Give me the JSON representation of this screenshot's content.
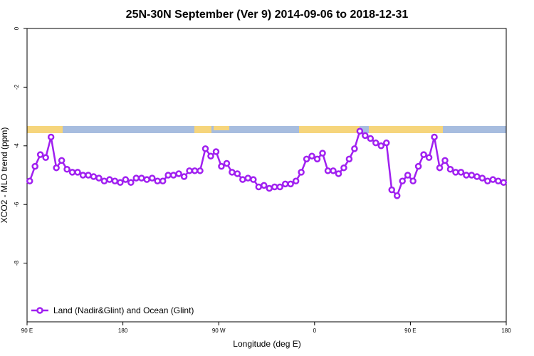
{
  "chart_data": {
    "type": "line",
    "title": "25N-30N September (Ver 9)   2014-09-06 to 2018-12-31",
    "x_label": "Longitude (deg E)",
    "y_label": "XCO2 - MLO trend (ppm)",
    "xlim": [
      90,
      540
    ],
    "ylim": [
      -10,
      0
    ],
    "xticks": [
      {
        "value": 90,
        "label": "90 E"
      },
      180,
      {
        "value": 270,
        "label": "90 W"
      },
      {
        "value": 360,
        "label": "0"
      },
      {
        "value": 450,
        "label": "90 E"
      },
      {
        "value": 540,
        "label": "180"
      }
    ],
    "yticks": [
      0,
      -2,
      -4,
      -6,
      -8
    ],
    "legend_position": "bottom-left",
    "x": [
      92.5,
      97.5,
      102.5,
      107.5,
      112.5,
      117.5,
      122.5,
      127.5,
      132.5,
      137.5,
      142.5,
      147.5,
      152.5,
      157.5,
      162.5,
      167.5,
      172.5,
      177.5,
      182.5,
      187.5,
      192.5,
      197.5,
      202.5,
      207.5,
      212.5,
      217.5,
      222.5,
      227.5,
      232.5,
      237.5,
      242.5,
      247.5,
      252.5,
      257.5,
      262.5,
      267.5,
      272.5,
      277.5,
      282.5,
      287.5,
      292.5,
      297.5,
      302.5,
      307.5,
      312.5,
      317.5,
      322.5,
      327.5,
      332.5,
      337.5,
      342.5,
      347.5,
      352.5,
      357.5,
      362.5,
      367.5,
      372.5,
      377.5,
      382.5,
      387.5,
      392.5,
      397.5,
      402.5,
      407.5,
      412.5,
      417.5,
      422.5,
      427.5,
      432.5,
      437.5,
      442.5,
      447.5,
      452.5,
      457.5,
      462.5,
      467.5,
      472.5,
      477.5,
      482.5,
      487.5,
      492.5,
      497.5,
      502.5,
      507.5,
      512.5,
      517.5,
      522.5,
      527.5,
      532.5,
      537.5
    ],
    "series": [
      {
        "name": "Land (Nadir&Glint) and Ocean (Glint)",
        "color": "#a020f0",
        "values": [
          -5.2,
          -4.7,
          -4.3,
          -4.4,
          -3.7,
          -4.75,
          -4.5,
          -4.8,
          -4.9,
          -4.9,
          -5.0,
          -5.0,
          -5.05,
          -5.1,
          -5.2,
          -5.15,
          -5.2,
          -5.25,
          -5.15,
          -5.25,
          -5.1,
          -5.1,
          -5.15,
          -5.1,
          -5.2,
          -5.2,
          -5.0,
          -5.0,
          -4.95,
          -5.05,
          -4.85,
          -4.85,
          -4.85,
          -4.1,
          -4.35,
          -4.2,
          -4.7,
          -4.6,
          -4.9,
          -4.95,
          -5.15,
          -5.1,
          -5.15,
          -5.4,
          -5.35,
          -5.45,
          -5.4,
          -5.4,
          -5.3,
          -5.3,
          -5.2,
          -4.9,
          -4.45,
          -4.35,
          -4.45,
          -4.25,
          -4.85,
          -4.85,
          -4.95,
          -4.75,
          -4.45,
          -4.1,
          -3.5,
          -3.65,
          -3.75,
          -3.9,
          -4.0,
          -3.9,
          -5.5,
          -5.7,
          -5.2,
          -5.0,
          -5.2,
          -4.7,
          -4.3,
          -4.4,
          -3.7,
          -4.75,
          -4.5,
          -4.8,
          -4.9,
          -4.9,
          -5.0,
          -5.0,
          -5.05,
          -5.1,
          -5.2,
          -5.15,
          -5.2,
          -5.25
        ]
      }
    ]
  }
}
